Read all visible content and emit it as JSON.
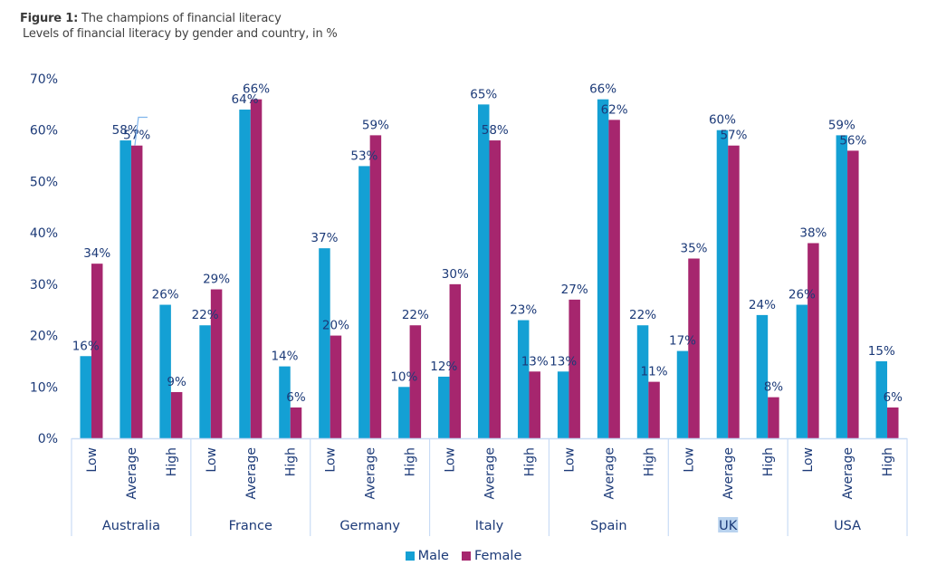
{
  "title_bold": "Figure 1:",
  "title_rest": " The champions of financial literacy",
  "subtitle": "Levels of financial literacy by gender and country, in %",
  "colors": {
    "male": "#14a0d4",
    "female": "#a6266e",
    "axis": "#c9dcf5",
    "text": "#1c3a78"
  },
  "chart_data": {
    "type": "bar",
    "title": "The champions of financial literacy",
    "subtitle": "Levels of financial literacy by gender and country, in %",
    "xlabel": "",
    "ylabel": "",
    "ylim": [
      0,
      70
    ],
    "yticks": [
      0,
      10,
      20,
      30,
      40,
      50,
      60,
      70
    ],
    "ytick_labels": [
      "0%",
      "10%",
      "20%",
      "30%",
      "40%",
      "50%",
      "60%",
      "70%"
    ],
    "grid": false,
    "legend_position": "bottom-center",
    "groups": [
      "Australia",
      "France",
      "Germany",
      "Italy",
      "Spain",
      "UK",
      "USA"
    ],
    "subcategories": [
      "Low",
      "Average",
      "High"
    ],
    "highlighted_group": "UK",
    "series": [
      {
        "name": "Male",
        "values": [
          [
            16,
            58,
            26
          ],
          [
            22,
            64,
            14
          ],
          [
            37,
            53,
            10
          ],
          [
            12,
            65,
            23
          ],
          [
            13,
            66,
            22
          ],
          [
            17,
            60,
            24
          ],
          [
            26,
            59,
            15
          ]
        ]
      },
      {
        "name": "Female",
        "values": [
          [
            34,
            57,
            9
          ],
          [
            29,
            66,
            6
          ],
          [
            20,
            59,
            22
          ],
          [
            30,
            58,
            13
          ],
          [
            27,
            62,
            11
          ],
          [
            35,
            57,
            8
          ],
          [
            38,
            56,
            6
          ]
        ]
      }
    ]
  },
  "legend": [
    {
      "name": "Male",
      "label": "Male"
    },
    {
      "name": "Female",
      "label": "Female"
    }
  ]
}
